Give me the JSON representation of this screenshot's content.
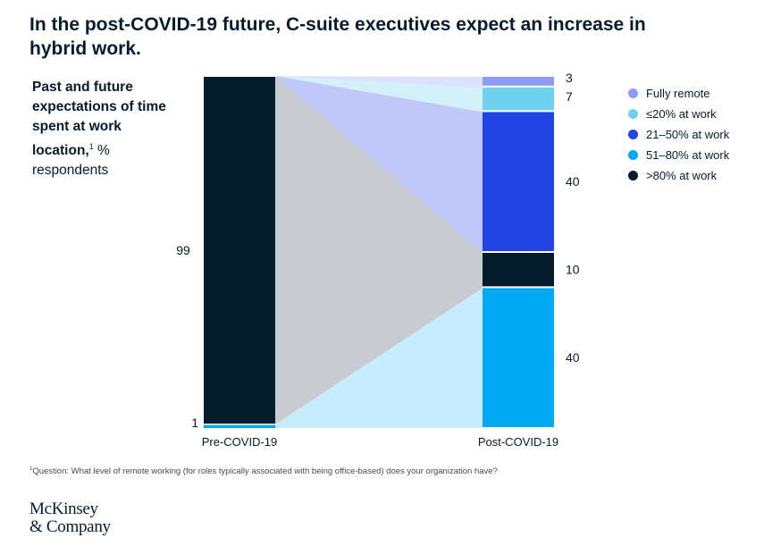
{
  "title": "In the post-COVID-19 future, C-suite executives expect an increase in hybrid work.",
  "y_info": {
    "bold": "Past and future expectations of time spent at work location,",
    "sup": "1",
    "unit": " %",
    "rest": "respondents"
  },
  "footnote": {
    "sup": "1",
    "text": "Question: What level of remote working (for roles typically associated with being office-based) does your organization have?"
  },
  "logo": {
    "line1": "McKinsey",
    "line2": "& Company"
  },
  "colors": {
    "fully_remote": "#8c9bf5",
    "le20": "#6fd1f0",
    "p21_50": "#2244e3",
    "p51_80": "#00a9f4",
    "gt80": "#051c2c",
    "flow_gray": "#c8ccd0"
  },
  "chart_data": {
    "type": "bar",
    "categories": [
      "Pre-COVID-19",
      "Post-COVID-19"
    ],
    "series": [
      {
        "key": "gt80",
        "name": ">80% at work",
        "values": [
          99,
          10
        ]
      },
      {
        "key": "p51_80",
        "name": "51–80% at work",
        "values": [
          1,
          40
        ]
      },
      {
        "key": "p21_50",
        "name": "21–50% at work",
        "values": [
          0,
          40
        ]
      },
      {
        "key": "le20",
        "name": "≤20% at work",
        "values": [
          0,
          7
        ]
      },
      {
        "key": "fully_remote",
        "name": "Fully remote",
        "values": [
          0,
          3
        ]
      }
    ],
    "labels": {
      "pre": [
        "99",
        "1"
      ],
      "post": [
        "3",
        "7",
        "40",
        "10",
        "40"
      ]
    },
    "legend": [
      {
        "key": "fully_remote",
        "label": "Fully remote"
      },
      {
        "key": "le20",
        "label": "≤20% at work"
      },
      {
        "key": "p21_50",
        "label": "21–50% at work"
      },
      {
        "key": "p51_80",
        "label": "51–80% at work"
      },
      {
        "key": "gt80",
        "label": ">80% at work"
      }
    ],
    "legend_position": "right"
  }
}
